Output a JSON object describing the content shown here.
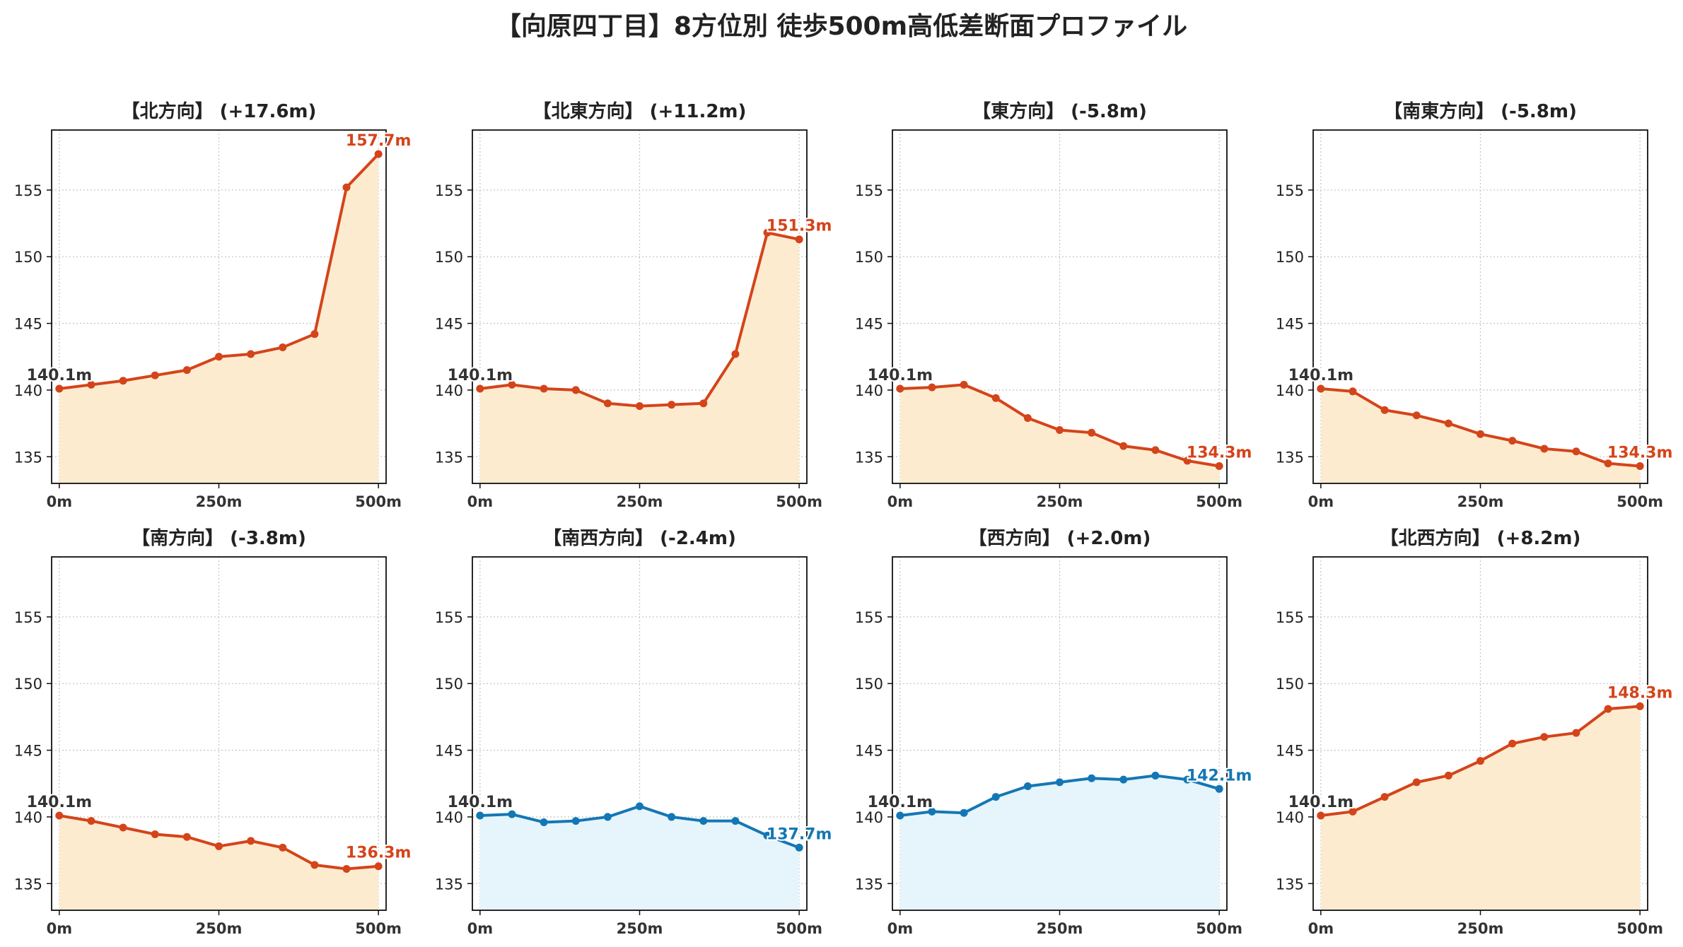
{
  "figure_title": "【向原四丁目】8方位別 徒歩500m高低差断面プロファイル",
  "colors": {
    "up_line": "#d4441a",
    "up_fill": "#fdebd0",
    "down_line": "#1477b5",
    "down_fill": "#e6f5fb",
    "start_label": "#333333",
    "grid": "#c8c8c8"
  },
  "chart_data": [
    {
      "type": "area",
      "title": "【北方向】 (+17.6m)",
      "trend": "up",
      "x": [
        0,
        50,
        100,
        150,
        200,
        250,
        300,
        350,
        400,
        450,
        500
      ],
      "values": [
        140.1,
        140.4,
        140.7,
        141.1,
        141.5,
        142.5,
        142.7,
        143.2,
        144.2,
        155.2,
        157.7
      ],
      "start_label": "140.1m",
      "end_label": "157.7m",
      "ylim": [
        133,
        159.5
      ],
      "xlim": [
        -12,
        512
      ],
      "yticks": [
        135,
        140,
        145,
        150,
        155
      ],
      "xticks": [
        0,
        250,
        500
      ],
      "xtick_labels": [
        "0m",
        "250m",
        "500m"
      ],
      "grid": true
    },
    {
      "type": "area",
      "title": "【北東方向】 (+11.2m)",
      "trend": "up",
      "x": [
        0,
        50,
        100,
        150,
        200,
        250,
        300,
        350,
        400,
        450,
        500
      ],
      "values": [
        140.1,
        140.4,
        140.1,
        140.0,
        139.0,
        138.8,
        138.9,
        139.0,
        142.7,
        151.8,
        151.3
      ],
      "start_label": "140.1m",
      "end_label": "151.3m",
      "ylim": [
        133,
        159.5
      ],
      "xlim": [
        -12,
        512
      ],
      "yticks": [
        135,
        140,
        145,
        150,
        155
      ],
      "xticks": [
        0,
        250,
        500
      ],
      "xtick_labels": [
        "0m",
        "250m",
        "500m"
      ],
      "grid": true
    },
    {
      "type": "area",
      "title": "【東方向】 (-5.8m)",
      "trend": "up",
      "x": [
        0,
        50,
        100,
        150,
        200,
        250,
        300,
        350,
        400,
        450,
        500
      ],
      "values": [
        140.1,
        140.2,
        140.4,
        139.4,
        137.9,
        137.0,
        136.8,
        135.8,
        135.5,
        134.7,
        134.3
      ],
      "start_label": "140.1m",
      "end_label": "134.3m",
      "ylim": [
        133,
        159.5
      ],
      "xlim": [
        -12,
        512
      ],
      "yticks": [
        135,
        140,
        145,
        150,
        155
      ],
      "xticks": [
        0,
        250,
        500
      ],
      "xtick_labels": [
        "0m",
        "250m",
        "500m"
      ],
      "grid": true
    },
    {
      "type": "area",
      "title": "【南東方向】 (-5.8m)",
      "trend": "up",
      "x": [
        0,
        50,
        100,
        150,
        200,
        250,
        300,
        350,
        400,
        450,
        500
      ],
      "values": [
        140.1,
        139.9,
        138.5,
        138.1,
        137.5,
        136.7,
        136.2,
        135.6,
        135.4,
        134.5,
        134.3
      ],
      "start_label": "140.1m",
      "end_label": "134.3m",
      "ylim": [
        133,
        159.5
      ],
      "xlim": [
        -12,
        512
      ],
      "yticks": [
        135,
        140,
        145,
        150,
        155
      ],
      "xticks": [
        0,
        250,
        500
      ],
      "xtick_labels": [
        "0m",
        "250m",
        "500m"
      ],
      "grid": true
    },
    {
      "type": "area",
      "title": "【南方向】 (-3.8m)",
      "trend": "up",
      "x": [
        0,
        50,
        100,
        150,
        200,
        250,
        300,
        350,
        400,
        450,
        500
      ],
      "values": [
        140.1,
        139.7,
        139.2,
        138.7,
        138.5,
        137.8,
        138.2,
        137.7,
        136.4,
        136.1,
        136.3
      ],
      "start_label": "140.1m",
      "end_label": "136.3m",
      "ylim": [
        133,
        159.5
      ],
      "xlim": [
        -12,
        512
      ],
      "yticks": [
        135,
        140,
        145,
        150,
        155
      ],
      "xticks": [
        0,
        250,
        500
      ],
      "xtick_labels": [
        "0m",
        "250m",
        "500m"
      ],
      "grid": true
    },
    {
      "type": "area",
      "title": "【南西方向】 (-2.4m)",
      "trend": "down",
      "x": [
        0,
        50,
        100,
        150,
        200,
        250,
        300,
        350,
        400,
        450,
        500
      ],
      "values": [
        140.1,
        140.2,
        139.6,
        139.7,
        140.0,
        140.8,
        140.0,
        139.7,
        139.7,
        138.6,
        137.7
      ],
      "start_label": "140.1m",
      "end_label": "137.7m",
      "ylim": [
        133,
        159.5
      ],
      "xlim": [
        -12,
        512
      ],
      "yticks": [
        135,
        140,
        145,
        150,
        155
      ],
      "xticks": [
        0,
        250,
        500
      ],
      "xtick_labels": [
        "0m",
        "250m",
        "500m"
      ],
      "grid": true
    },
    {
      "type": "area",
      "title": "【西方向】 (+2.0m)",
      "trend": "down",
      "x": [
        0,
        50,
        100,
        150,
        200,
        250,
        300,
        350,
        400,
        450,
        500
      ],
      "values": [
        140.1,
        140.4,
        140.3,
        141.5,
        142.3,
        142.6,
        142.9,
        142.8,
        143.1,
        142.8,
        142.1
      ],
      "start_label": "140.1m",
      "end_label": "142.1m",
      "ylim": [
        133,
        159.5
      ],
      "xlim": [
        -12,
        512
      ],
      "yticks": [
        135,
        140,
        145,
        150,
        155
      ],
      "xticks": [
        0,
        250,
        500
      ],
      "xtick_labels": [
        "0m",
        "250m",
        "500m"
      ],
      "grid": true
    },
    {
      "type": "area",
      "title": "【北西方向】 (+8.2m)",
      "trend": "up",
      "x": [
        0,
        50,
        100,
        150,
        200,
        250,
        300,
        350,
        400,
        450,
        500
      ],
      "values": [
        140.1,
        140.4,
        141.5,
        142.6,
        143.1,
        144.2,
        145.5,
        146.0,
        146.3,
        148.1,
        148.3
      ],
      "start_label": "140.1m",
      "end_label": "148.3m",
      "ylim": [
        133,
        159.5
      ],
      "xlim": [
        -12,
        512
      ],
      "yticks": [
        135,
        140,
        145,
        150,
        155
      ],
      "xticks": [
        0,
        250,
        500
      ],
      "xtick_labels": [
        "0m",
        "250m",
        "500m"
      ],
      "grid": true
    }
  ]
}
